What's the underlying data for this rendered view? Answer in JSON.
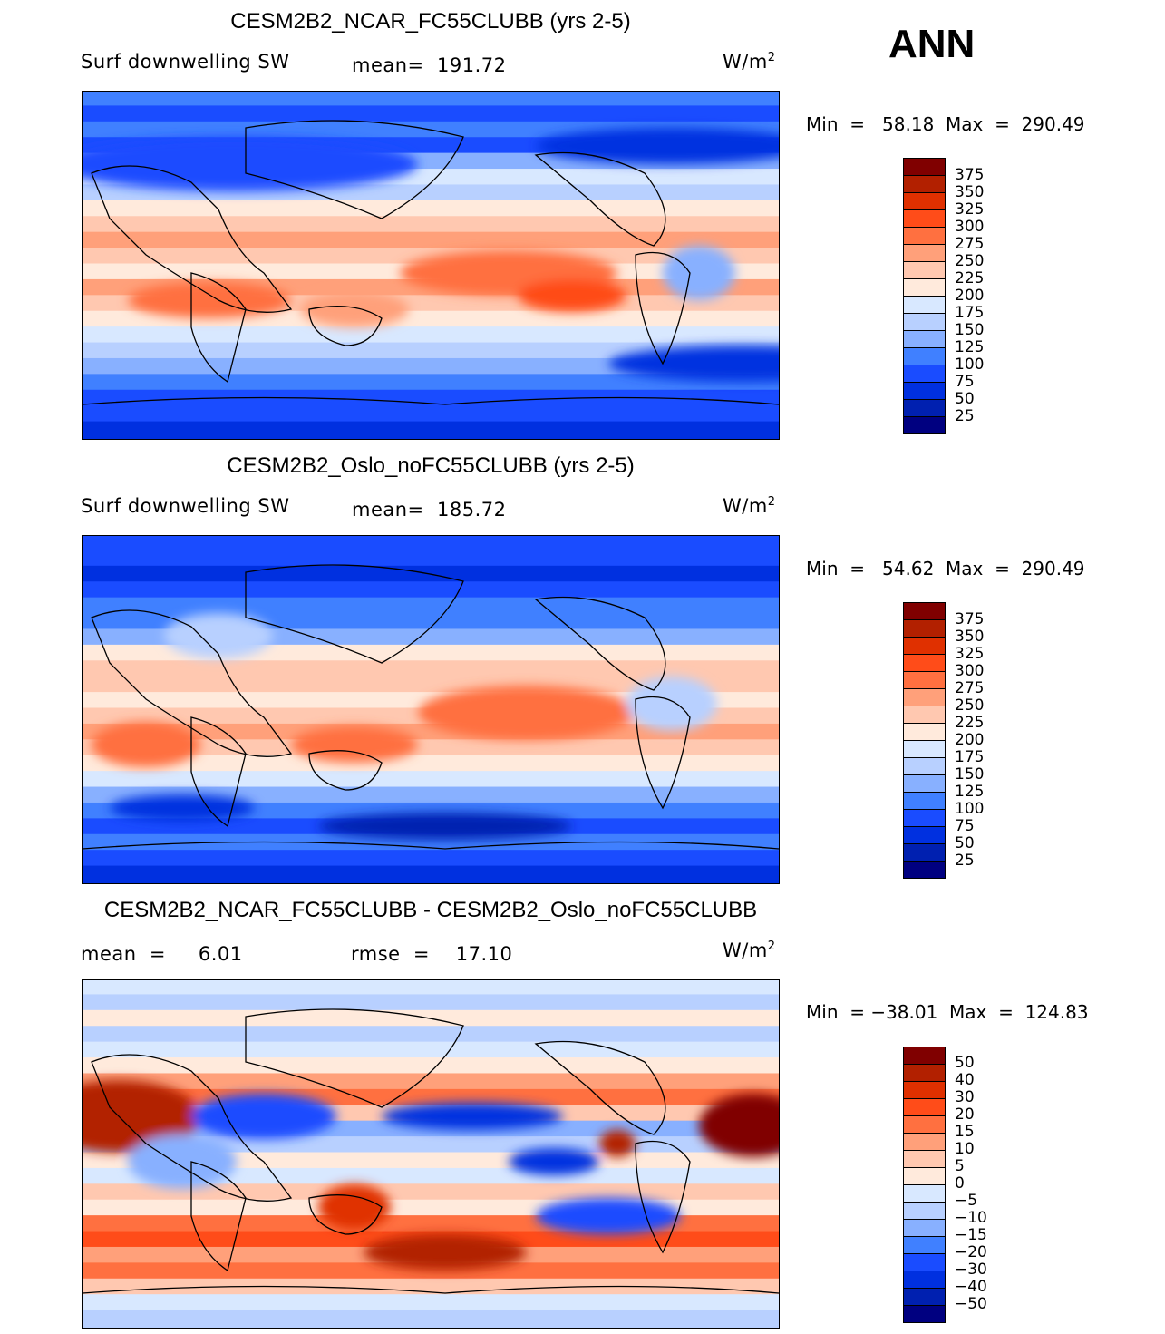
{
  "season": "ANN",
  "colors": [
    "#000080",
    "#0020b0",
    "#0030e0",
    "#1a4cff",
    "#4080ff",
    "#88b0ff",
    "#b8d0ff",
    "#d8e8ff",
    "#ffeadc",
    "#ffc8b0",
    "#ffa07a",
    "#ff7040",
    "#ff4c19",
    "#e03000",
    "#b22000",
    "#800000"
  ],
  "panels": [
    {
      "title": "CESM2B2_NCAR_FC55CLUBB (yrs 2-5)",
      "variable": "Surf  downwelling SW",
      "stat": "mean=  191.72",
      "units": "W/m",
      "units_sup": "2",
      "minmax": "Min  =   58.18  Max  =  290.49",
      "levels": [
        "375",
        "350",
        "325",
        "300",
        "275",
        "250",
        "225",
        "200",
        "175",
        "150",
        "125",
        "100",
        "75",
        "50",
        "25"
      ]
    },
    {
      "title": "CESM2B2_Oslo_noFC55CLUBB (yrs 2-5)",
      "variable": "Surf  downwelling SW",
      "stat": "mean=  185.72",
      "units": "W/m",
      "units_sup": "2",
      "minmax": "Min  =   54.62  Max  =  290.49",
      "levels": [
        "375",
        "350",
        "325",
        "300",
        "275",
        "250",
        "225",
        "200",
        "175",
        "150",
        "125",
        "100",
        "75",
        "50",
        "25"
      ]
    },
    {
      "title": "CESM2B2_NCAR_FC55CLUBB - CESM2B2_Oslo_noFC55CLUBB",
      "mean": "mean  =     6.01",
      "rmse": "rmse  =    17.10",
      "units": "W/m",
      "units_sup": "2",
      "minmax": "Min  = −38.01  Max  =  124.83",
      "levels": [
        "50",
        "40",
        "30",
        "20",
        "15",
        "10",
        "5",
        "0",
        "−5",
        "−10",
        "−15",
        "−20",
        "−30",
        "−40",
        "−50"
      ]
    }
  ]
}
